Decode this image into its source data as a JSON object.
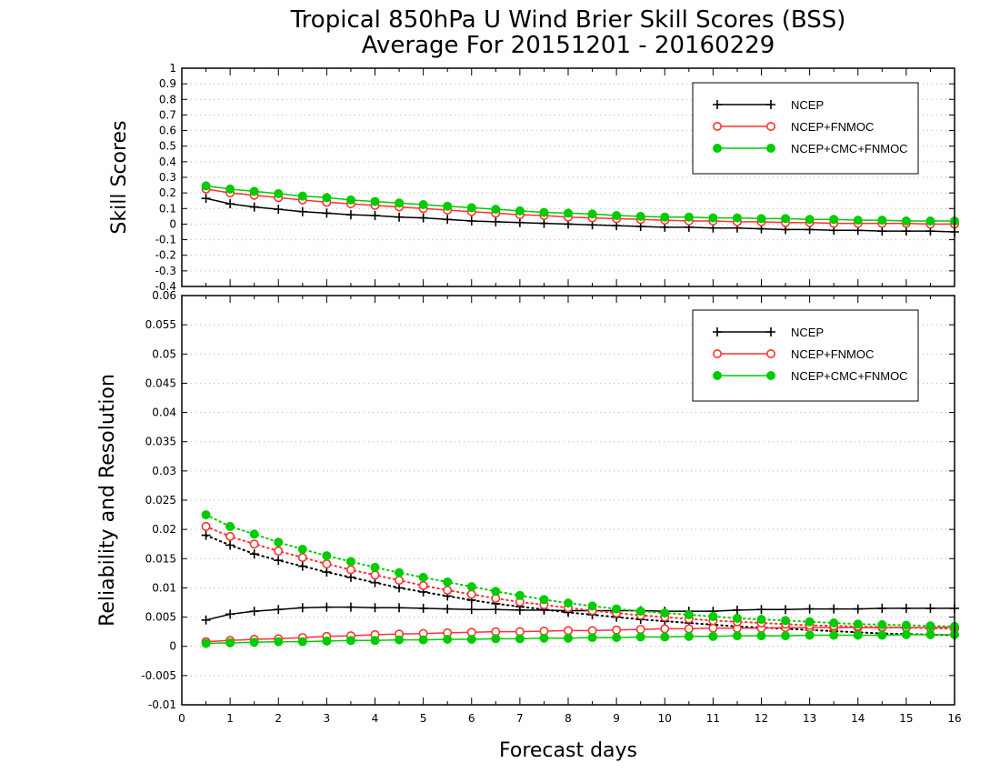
{
  "title": "Tropical 850hPa U Wind Brier Skill Scores (BSS)",
  "subtitle": "Average For 20151201 - 20160229",
  "xlabel": "Forecast days",
  "colors": {
    "NCEP": "#000000",
    "NCEP+FNMOC": "#ff3030",
    "NCEP+CMC+FNMOC": "#00cc00"
  },
  "chart_data": [
    {
      "type": "line",
      "ylabel": "Skill Scores",
      "xlim": [
        0,
        16
      ],
      "ylim": [
        -0.4,
        1
      ],
      "xticks": [
        "0",
        "1",
        "2",
        "3",
        "4",
        "5",
        "6",
        "7",
        "8",
        "9",
        "10",
        "11",
        "12",
        "13",
        "14",
        "15",
        "16"
      ],
      "yticks": [
        "-0.4",
        "-0.3",
        "-0.2",
        "-0.1",
        "0",
        "0.1",
        "0.2",
        "0.3",
        "0.4",
        "0.5",
        "0.6",
        "0.7",
        "0.8",
        "0.9",
        "1"
      ],
      "grid": true,
      "legend_position": "top-right",
      "x": [
        0.5,
        1,
        1.5,
        2,
        2.5,
        3,
        3.5,
        4,
        4.5,
        5,
        5.5,
        6,
        6.5,
        7,
        7.5,
        8,
        8.5,
        9,
        9.5,
        10,
        10.5,
        11,
        11.5,
        12,
        12.5,
        13,
        13.5,
        14,
        14.5,
        15,
        15.5,
        16
      ],
      "series": [
        {
          "name": "NCEP",
          "marker": "plus",
          "values": [
            0.165,
            0.13,
            0.11,
            0.095,
            0.08,
            0.07,
            0.06,
            0.055,
            0.045,
            0.04,
            0.03,
            0.02,
            0.015,
            0.01,
            0.005,
            0,
            -0.005,
            -0.01,
            -0.015,
            -0.02,
            -0.02,
            -0.025,
            -0.025,
            -0.03,
            -0.035,
            -0.035,
            -0.04,
            -0.04,
            -0.045,
            -0.045,
            -0.045,
            -0.05
          ]
        },
        {
          "name": "NCEP+FNMOC",
          "marker": "open-circle",
          "values": [
            0.225,
            0.2,
            0.185,
            0.17,
            0.155,
            0.14,
            0.13,
            0.12,
            0.11,
            0.1,
            0.09,
            0.08,
            0.07,
            0.06,
            0.055,
            0.045,
            0.04,
            0.035,
            0.03,
            0.025,
            0.02,
            0.02,
            0.015,
            0.015,
            0.01,
            0.01,
            0.005,
            0.005,
            0.005,
            0.005,
            0,
            0
          ]
        },
        {
          "name": "NCEP+CMC+FNMOC",
          "marker": "filled-circle",
          "values": [
            0.245,
            0.225,
            0.21,
            0.195,
            0.18,
            0.17,
            0.155,
            0.145,
            0.135,
            0.125,
            0.115,
            0.105,
            0.095,
            0.085,
            0.075,
            0.07,
            0.065,
            0.055,
            0.05,
            0.045,
            0.045,
            0.04,
            0.04,
            0.035,
            0.035,
            0.03,
            0.03,
            0.025,
            0.025,
            0.02,
            0.02,
            0.02
          ]
        }
      ]
    },
    {
      "type": "line",
      "ylabel": "Reliability and Resolution",
      "xlim": [
        0,
        16
      ],
      "ylim": [
        -0.01,
        0.06
      ],
      "xticks": [
        "0",
        "1",
        "2",
        "3",
        "4",
        "5",
        "6",
        "7",
        "8",
        "9",
        "10",
        "11",
        "12",
        "13",
        "14",
        "15",
        "16"
      ],
      "yticks": [
        "-0.01",
        "-0.005",
        "0",
        "0.005",
        "0.01",
        "0.015",
        "0.02",
        "0.025",
        "0.03",
        "0.035",
        "0.04",
        "0.045",
        "0.05",
        "0.055",
        "0.06"
      ],
      "grid": true,
      "legend_position": "top-right",
      "x": [
        0.5,
        1,
        1.5,
        2,
        2.5,
        3,
        3.5,
        4,
        4.5,
        5,
        5.5,
        6,
        6.5,
        7,
        7.5,
        8,
        8.5,
        9,
        9.5,
        10,
        10.5,
        11,
        11.5,
        12,
        12.5,
        13,
        13.5,
        14,
        14.5,
        15,
        15.5,
        16
      ],
      "series": [
        {
          "name": "NCEP",
          "marker": "plus",
          "style": "solid",
          "values": [
            0.0045,
            0.0055,
            0.006,
            0.0063,
            0.0066,
            0.0067,
            0.0067,
            0.0066,
            0.0066,
            0.0065,
            0.0064,
            0.0063,
            0.0063,
            0.0062,
            0.0062,
            0.0061,
            0.0061,
            0.0061,
            0.0061,
            0.006,
            0.006,
            0.006,
            0.0062,
            0.0063,
            0.0063,
            0.0064,
            0.0064,
            0.0064,
            0.0065,
            0.0065,
            0.0065,
            0.0065
          ]
        },
        {
          "name": "NCEP",
          "marker": "plus",
          "style": "dotted",
          "values": [
            0.019,
            0.0173,
            0.0158,
            0.0147,
            0.0137,
            0.0127,
            0.0118,
            0.0109,
            0.01,
            0.0093,
            0.0086,
            0.0079,
            0.0073,
            0.0068,
            0.0063,
            0.0058,
            0.0054,
            0.005,
            0.0046,
            0.0043,
            0.004,
            0.0037,
            0.0034,
            0.0032,
            0.003,
            0.0028,
            0.0026,
            0.0024,
            0.0022,
            0.0021,
            0.002,
            0.0019
          ]
        },
        {
          "name": "NCEP+FNMOC",
          "marker": "open-circle",
          "style": "solid",
          "values": [
            0.0008,
            0.001,
            0.0012,
            0.0013,
            0.0015,
            0.0017,
            0.0018,
            0.002,
            0.0021,
            0.0022,
            0.0023,
            0.0024,
            0.0025,
            0.0025,
            0.0026,
            0.0027,
            0.0027,
            0.0028,
            0.0029,
            0.003,
            0.003,
            0.0031,
            0.0031,
            0.0031,
            0.0032,
            0.0032,
            0.0032,
            0.0032,
            0.0032,
            0.0032,
            0.0032,
            0.0033
          ]
        },
        {
          "name": "NCEP+FNMOC",
          "marker": "open-circle",
          "style": "dotted",
          "values": [
            0.0205,
            0.0188,
            0.0175,
            0.0163,
            0.0152,
            0.0141,
            0.0131,
            0.0122,
            0.0113,
            0.0104,
            0.0096,
            0.0089,
            0.0082,
            0.0076,
            0.0071,
            0.0066,
            0.0061,
            0.0057,
            0.0053,
            0.005,
            0.0047,
            0.0044,
            0.0042,
            0.004,
            0.0038,
            0.0036,
            0.0035,
            0.0034,
            0.0033,
            0.0032,
            0.0031,
            0.003
          ]
        },
        {
          "name": "NCEP+CMC+FNMOC",
          "marker": "filled-circle",
          "style": "solid",
          "values": [
            0.0005,
            0.0006,
            0.0007,
            0.0008,
            0.0008,
            0.0009,
            0.001,
            0.001,
            0.0011,
            0.0011,
            0.0012,
            0.0012,
            0.0013,
            0.0013,
            0.0014,
            0.0014,
            0.0015,
            0.0015,
            0.0016,
            0.0016,
            0.0017,
            0.0017,
            0.0018,
            0.0018,
            0.0018,
            0.0019,
            0.0019,
            0.0019,
            0.0019,
            0.002,
            0.002,
            0.002
          ]
        },
        {
          "name": "NCEP+CMC+FNMOC",
          "marker": "filled-circle",
          "style": "dotted",
          "values": [
            0.0225,
            0.0205,
            0.0192,
            0.0178,
            0.0166,
            0.0155,
            0.0145,
            0.0135,
            0.0126,
            0.0118,
            0.011,
            0.0102,
            0.0094,
            0.0087,
            0.008,
            0.0074,
            0.0069,
            0.0064,
            0.006,
            0.0057,
            0.0054,
            0.0051,
            0.0048,
            0.0046,
            0.0044,
            0.0042,
            0.004,
            0.0038,
            0.0037,
            0.0036,
            0.0035,
            0.0034
          ]
        }
      ]
    }
  ]
}
